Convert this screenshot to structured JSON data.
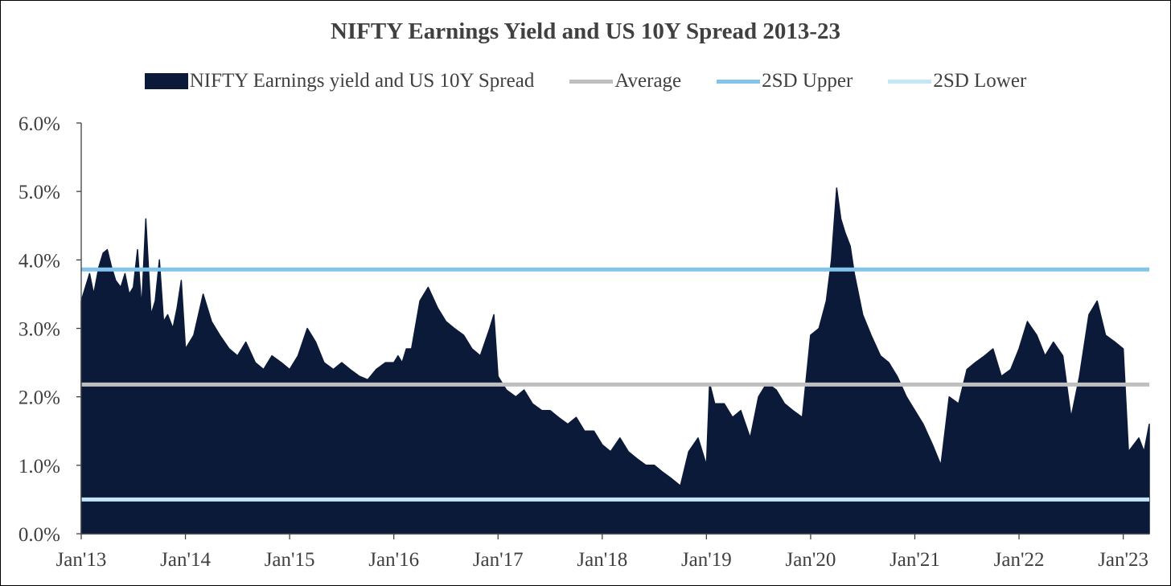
{
  "chart_data": {
    "type": "area",
    "title": "NIFTY Earnings Yield and US 10Y Spread 2013-23",
    "xlabel": "",
    "ylabel": "",
    "ylim": [
      0,
      6
    ],
    "y_ticks": [
      0,
      1,
      2,
      3,
      4,
      5,
      6
    ],
    "y_tick_labels": [
      "0.0%",
      "1.0%",
      "2.0%",
      "3.0%",
      "4.0%",
      "5.0%",
      "6.0%"
    ],
    "x_range": [
      2013.0,
      2023.25
    ],
    "x_ticks": [
      2013,
      2014,
      2015,
      2016,
      2017,
      2018,
      2019,
      2020,
      2021,
      2022,
      2023
    ],
    "x_tick_labels": [
      "Jan'13",
      "Jan'14",
      "Jan'15",
      "Jan'16",
      "Jan'17",
      "Jan'18",
      "Jan'19",
      "Jan'20",
      "Jan'21",
      "Jan'22",
      "Jan'23"
    ],
    "legend_position": "top",
    "series": [
      {
        "name": "NIFTY Earnings yield and US 10Y Spread",
        "kind": "area",
        "color": "#0c1a3a",
        "x": [
          2013.0,
          2013.04,
          2013.08,
          2013.12,
          2013.17,
          2013.21,
          2013.25,
          2013.29,
          2013.33,
          2013.38,
          2013.42,
          2013.46,
          2013.5,
          2013.54,
          2013.58,
          2013.62,
          2013.67,
          2013.71,
          2013.75,
          2013.79,
          2013.83,
          2013.88,
          2013.92,
          2013.96,
          2014.0,
          2014.08,
          2014.17,
          2014.25,
          2014.33,
          2014.42,
          2014.5,
          2014.58,
          2014.67,
          2014.75,
          2014.83,
          2014.92,
          2015.0,
          2015.08,
          2015.17,
          2015.25,
          2015.33,
          2015.42,
          2015.5,
          2015.58,
          2015.67,
          2015.75,
          2015.83,
          2015.92,
          2016.0,
          2016.04,
          2016.08,
          2016.12,
          2016.17,
          2016.25,
          2016.33,
          2016.42,
          2016.5,
          2016.58,
          2016.67,
          2016.75,
          2016.83,
          2016.92,
          2016.96,
          2017.0,
          2017.08,
          2017.17,
          2017.25,
          2017.33,
          2017.42,
          2017.5,
          2017.58,
          2017.67,
          2017.75,
          2017.83,
          2017.92,
          2018.0,
          2018.08,
          2018.17,
          2018.25,
          2018.33,
          2018.42,
          2018.5,
          2018.58,
          2018.67,
          2018.75,
          2018.83,
          2018.92,
          2019.0,
          2019.03,
          2019.08,
          2019.17,
          2019.25,
          2019.33,
          2019.42,
          2019.5,
          2019.58,
          2019.67,
          2019.75,
          2019.83,
          2019.92,
          2020.0,
          2020.08,
          2020.15,
          2020.2,
          2020.25,
          2020.29,
          2020.33,
          2020.38,
          2020.42,
          2020.5,
          2020.58,
          2020.67,
          2020.75,
          2020.83,
          2020.92,
          2021.0,
          2021.08,
          2021.17,
          2021.25,
          2021.33,
          2021.42,
          2021.5,
          2021.58,
          2021.67,
          2021.75,
          2021.83,
          2021.92,
          2022.0,
          2022.08,
          2022.17,
          2022.25,
          2022.33,
          2022.42,
          2022.5,
          2022.58,
          2022.67,
          2022.75,
          2022.83,
          2022.92,
          2023.0,
          2023.05,
          2023.1,
          2023.15,
          2023.2,
          2023.25
        ],
        "values": [
          3.4,
          3.6,
          3.8,
          3.5,
          3.9,
          4.1,
          4.15,
          3.9,
          3.7,
          3.6,
          3.8,
          3.5,
          3.6,
          4.15,
          3.3,
          4.6,
          3.2,
          3.4,
          4.0,
          3.1,
          3.2,
          3.0,
          3.3,
          3.7,
          2.7,
          2.9,
          3.5,
          3.1,
          2.9,
          2.7,
          2.6,
          2.8,
          2.5,
          2.4,
          2.6,
          2.5,
          2.4,
          2.6,
          3.0,
          2.8,
          2.5,
          2.4,
          2.5,
          2.4,
          2.3,
          2.25,
          2.4,
          2.5,
          2.5,
          2.6,
          2.5,
          2.7,
          2.7,
          3.4,
          3.6,
          3.3,
          3.1,
          3.0,
          2.9,
          2.7,
          2.6,
          3.0,
          3.2,
          2.3,
          2.1,
          2.0,
          2.1,
          1.9,
          1.8,
          1.8,
          1.7,
          1.6,
          1.7,
          1.5,
          1.5,
          1.3,
          1.2,
          1.4,
          1.2,
          1.1,
          1.0,
          1.0,
          0.9,
          0.8,
          0.7,
          1.2,
          1.4,
          1.0,
          2.2,
          1.9,
          1.9,
          1.7,
          1.8,
          1.4,
          2.0,
          2.2,
          2.1,
          1.9,
          1.8,
          1.7,
          2.9,
          3.0,
          3.4,
          4.0,
          5.05,
          4.6,
          4.4,
          4.2,
          3.8,
          3.2,
          2.9,
          2.6,
          2.5,
          2.3,
          2.0,
          1.8,
          1.6,
          1.3,
          1.0,
          2.0,
          1.9,
          2.4,
          2.5,
          2.6,
          2.7,
          2.3,
          2.4,
          2.7,
          3.1,
          2.9,
          2.6,
          2.8,
          2.6,
          1.7,
          2.3,
          3.2,
          3.4,
          2.9,
          2.8,
          2.7,
          1.2,
          1.3,
          1.4,
          1.2,
          1.6
        ]
      },
      {
        "name": "Average",
        "kind": "line",
        "color": "#bfbfbf",
        "value": 2.18
      },
      {
        "name": "2SD Upper",
        "kind": "line",
        "color": "#82c4ec",
        "value": 3.86
      },
      {
        "name": "2SD Lower",
        "kind": "line",
        "color": "#c5e6f7",
        "value": 0.5
      }
    ]
  }
}
